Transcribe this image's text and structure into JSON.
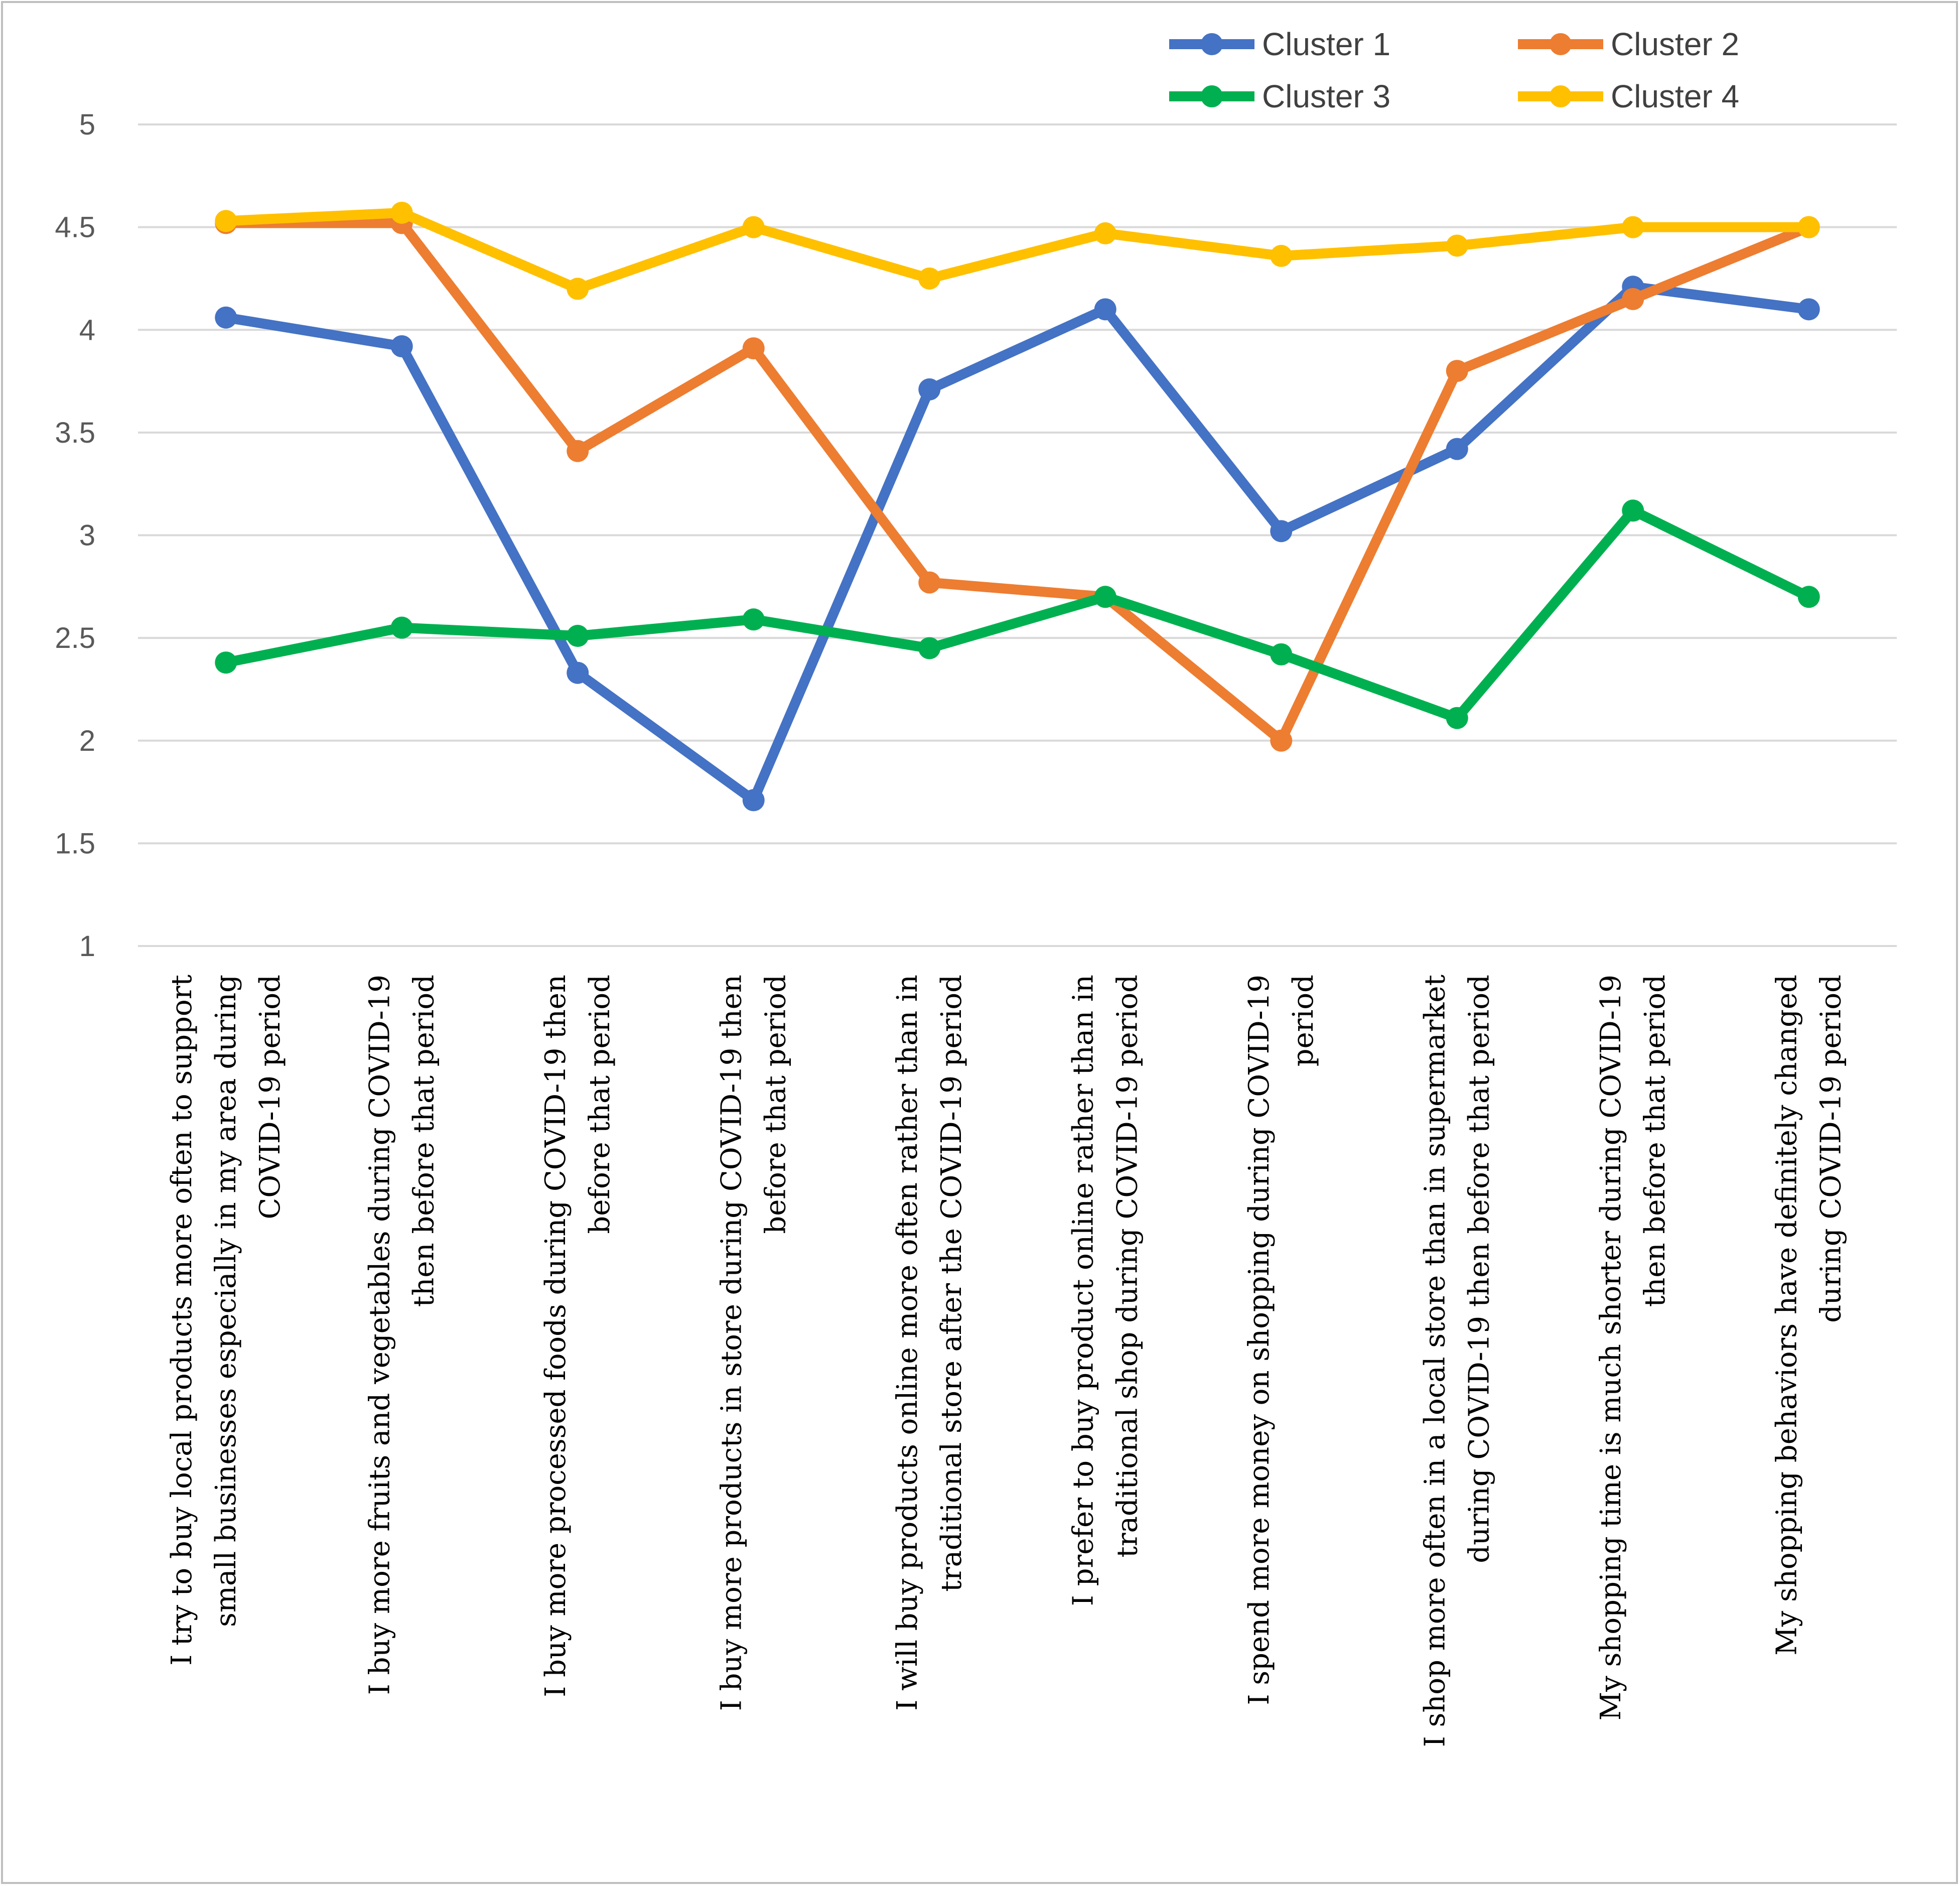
{
  "chart_data": {
    "type": "line",
    "title": "",
    "xlabel": "",
    "ylabel": "",
    "ylim": [
      1,
      5
    ],
    "yticks": [
      "1",
      "1.5",
      "2",
      "2.5",
      "3",
      "3.5",
      "4",
      "4.5",
      "5"
    ],
    "grid": true,
    "legend_position": "top-right",
    "categories": [
      [
        "I try to buy local products more often to support",
        "small businesses especially in my area during",
        "COVID-19 period"
      ],
      [
        "I buy more fruits and vegetables during COVID-19",
        "then before that period"
      ],
      [
        "I buy more processed foods during COVID-19 then",
        "before that period"
      ],
      [
        "I buy more products in store during COVID-19 then",
        "before that period"
      ],
      [
        "I will buy products online more often rather than in",
        "traditional store after the COVID-19 period"
      ],
      [
        "I prefer to buy product online rather than in",
        "traditional shop during COVID-19 period"
      ],
      [
        "I spend more money on shopping during COVID-19",
        "period"
      ],
      [
        "I shop more often in a local store than in supermarket",
        "during COVID-19 then before that period"
      ],
      [
        "My shopping time is much shorter during COVID-19",
        "then before that period"
      ],
      [
        "My shopping behaviors have definitely changed",
        "during COVID-19 period"
      ]
    ],
    "series": [
      {
        "name": "Cluster 1",
        "color": "#4472C4",
        "values": [
          4.06,
          3.92,
          2.33,
          1.71,
          3.71,
          4.1,
          3.02,
          3.42,
          4.21,
          4.1
        ]
      },
      {
        "name": "Cluster 2",
        "color": "#ED7D31",
        "values": [
          4.52,
          4.52,
          3.41,
          3.91,
          2.77,
          2.7,
          2.0,
          3.8,
          4.15,
          4.5
        ]
      },
      {
        "name": "Cluster 3",
        "color": "#00B050",
        "values": [
          2.38,
          2.55,
          2.51,
          2.59,
          2.45,
          2.7,
          2.42,
          2.11,
          3.12,
          2.7
        ]
      },
      {
        "name": "Cluster 4",
        "color": "#FFC000",
        "values": [
          4.53,
          4.57,
          4.2,
          4.5,
          4.25,
          4.47,
          4.36,
          4.41,
          4.5,
          4.5
        ]
      }
    ]
  }
}
